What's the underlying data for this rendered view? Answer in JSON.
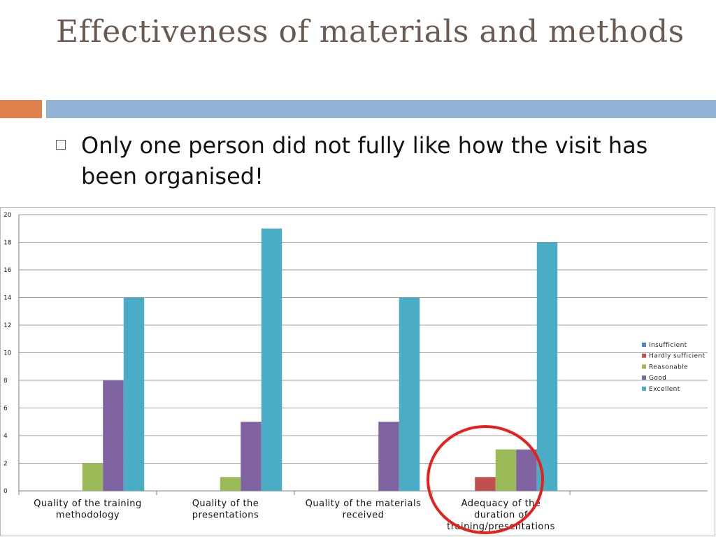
{
  "slide": {
    "title": "Effectiveness of materials and methods",
    "bullet": "Only one person did not fully like how the visit has been organised!"
  },
  "colors": {
    "title": "#6b5a4f",
    "accent_orange": "#e0804a",
    "accent_blue": "#92b4d7",
    "highlight_circle": "#e8201c"
  },
  "chart_data": {
    "type": "bar",
    "title": "",
    "xlabel": "",
    "ylabel": "",
    "ylim": [
      0,
      20
    ],
    "yticks": [
      "0",
      "2",
      "4",
      "6",
      "8",
      "10",
      "12",
      "14",
      "16",
      "18",
      "20"
    ],
    "grid": true,
    "legend_position": "right",
    "categories": [
      [
        "Quality of the training",
        "methodology"
      ],
      [
        "Quality of the",
        "presentations"
      ],
      [
        "Quality of the materials",
        "received"
      ],
      [
        "Adequacy of the",
        "duration of",
        "training/presentations"
      ]
    ],
    "series": [
      {
        "name": "Insufficient",
        "color": "#4f81bd",
        "values": [
          0,
          0,
          0,
          0
        ]
      },
      {
        "name": "Hardly sufficient",
        "color": "#c0504d",
        "values": [
          0,
          0,
          0,
          1
        ]
      },
      {
        "name": "Reasonable",
        "color": "#9bbb59",
        "values": [
          2,
          1,
          0,
          3
        ]
      },
      {
        "name": "Good",
        "color": "#8064a2",
        "values": [
          8,
          5,
          5,
          3
        ]
      },
      {
        "name": "Excellent",
        "color": "#4bacc6",
        "values": [
          14,
          19,
          14,
          18
        ]
      }
    ],
    "annotation": "red circle highlighting the Adequacy of the duration of training/presentations group"
  }
}
